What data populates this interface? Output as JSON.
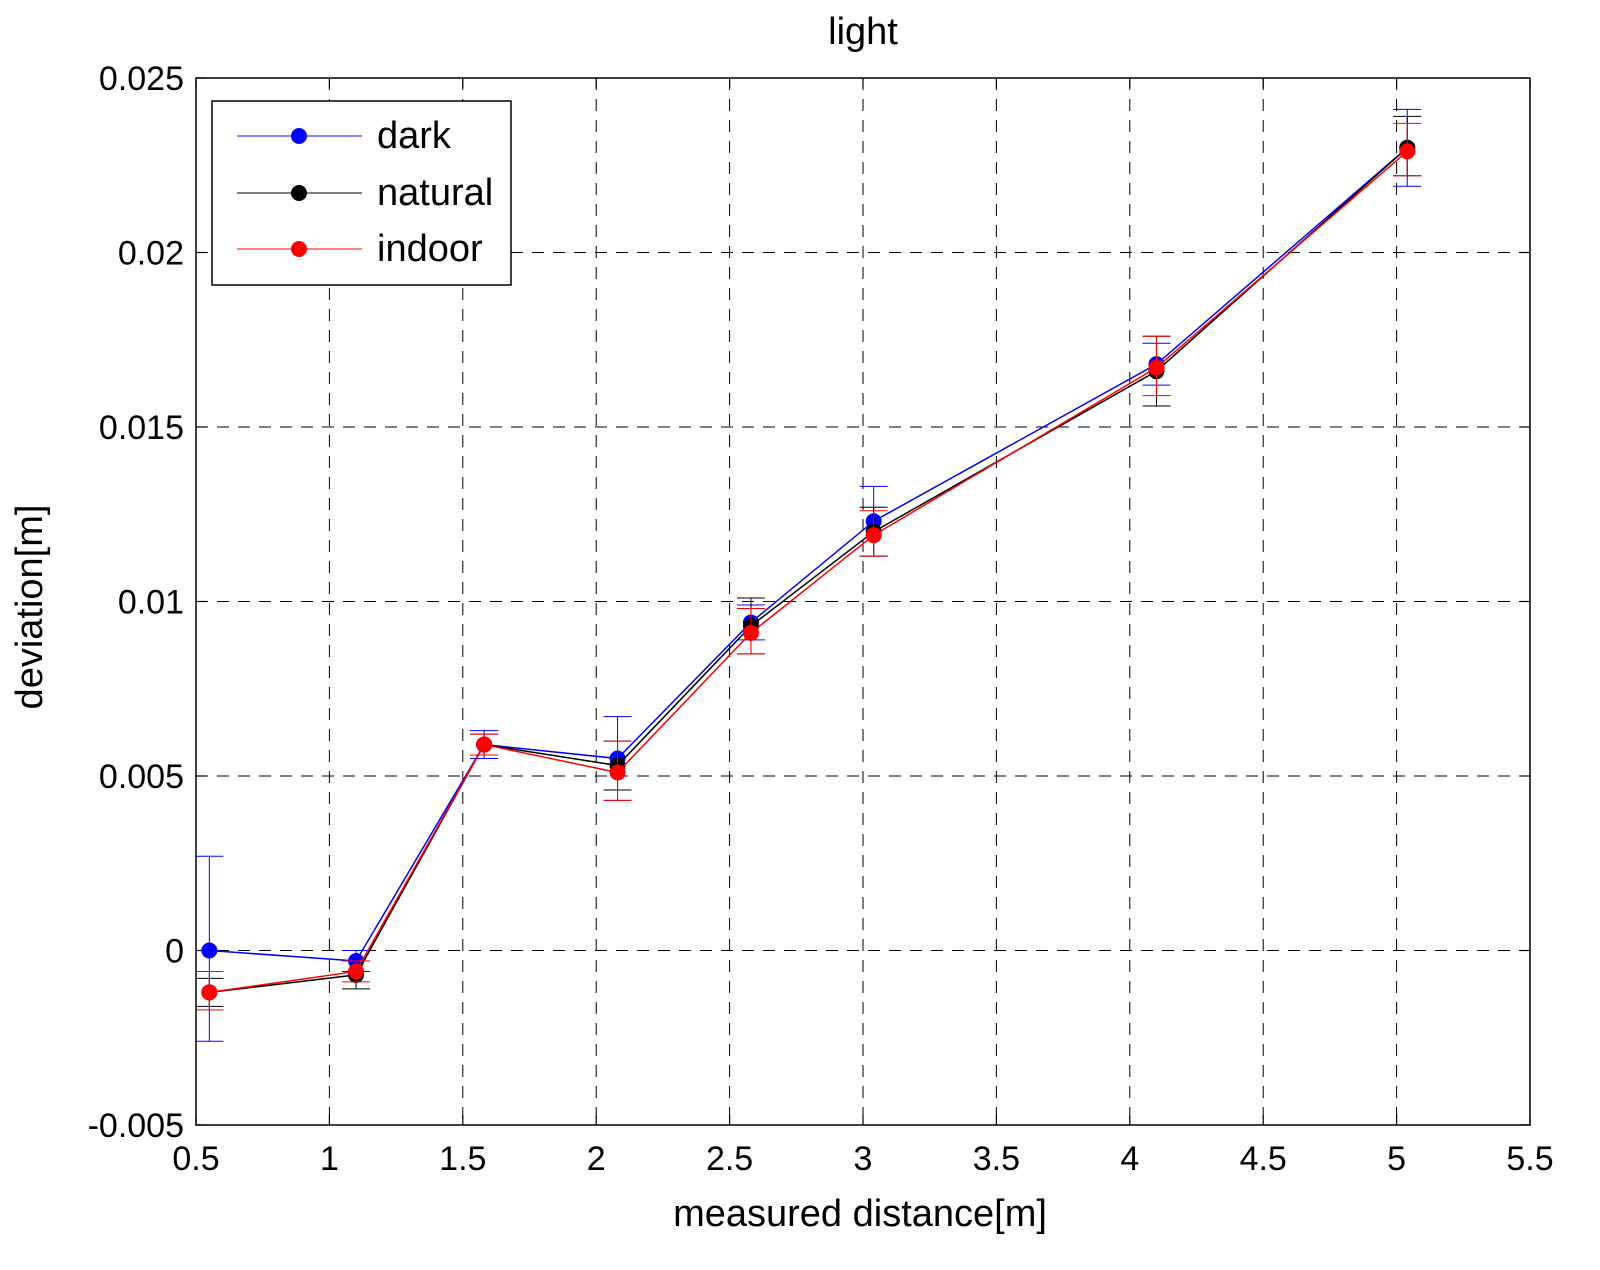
{
  "chart_data": {
    "type": "line",
    "title": "light",
    "xlabel": "measured distance[m]",
    "ylabel": "deviation[m]",
    "xlim": [
      0.5,
      5.5
    ],
    "ylim": [
      -0.005,
      0.025
    ],
    "xticks": [
      0.5,
      1,
      1.5,
      2,
      2.5,
      3,
      3.5,
      4,
      4.5,
      5,
      5.5
    ],
    "xtick_labels": [
      "0.5",
      "1",
      "1.5",
      "2",
      "2.5",
      "3",
      "3.5",
      "4",
      "4.5",
      "5",
      "5.5"
    ],
    "yticks": [
      -0.005,
      0,
      0.005,
      0.01,
      0.015,
      0.02,
      0.025
    ],
    "ytick_labels": [
      "-0.005",
      "0",
      "0.005",
      "0.01",
      "0.015",
      "0.02",
      "0.025"
    ],
    "grid": true,
    "legend_position": "top-left",
    "series": [
      {
        "name": "dark",
        "color": "#0000ff",
        "x": [
          0.55,
          1.1,
          1.58,
          2.08,
          2.58,
          3.04,
          4.1,
          5.04
        ],
        "y": [
          0.0,
          -0.0003,
          0.0059,
          0.0055,
          0.0094,
          0.0123,
          0.0168,
          0.023
        ],
        "err_low": [
          0.0026,
          0.0003,
          0.0004,
          0.0012,
          0.0005,
          0.001,
          0.0006,
          0.0011
        ],
        "err_high": [
          0.0027,
          0.0003,
          0.0004,
          0.0012,
          0.0005,
          0.001,
          0.0006,
          0.0011
        ]
      },
      {
        "name": "natural",
        "color": "#000000",
        "x": [
          0.55,
          1.1,
          1.58,
          2.08,
          2.58,
          3.04,
          4.1,
          5.04
        ],
        "y": [
          -0.0012,
          -0.0007,
          0.0059,
          0.0053,
          0.0093,
          0.012,
          0.0166,
          0.023
        ],
        "err_low": [
          0.0004,
          0.0004,
          0.0003,
          0.0007,
          0.0008,
          0.0007,
          0.001,
          0.0008
        ],
        "err_high": [
          0.0004,
          0.0004,
          0.0003,
          0.0007,
          0.0008,
          0.0007,
          0.001,
          0.0009
        ]
      },
      {
        "name": "indoor",
        "color": "#ff0000",
        "x": [
          0.55,
          1.1,
          1.58,
          2.08,
          2.58,
          3.04,
          4.1,
          5.04
        ],
        "y": [
          -0.0012,
          -0.0006,
          0.0059,
          0.0051,
          0.0091,
          0.0119,
          0.0167,
          0.0229
        ],
        "err_low": [
          0.0005,
          0.0003,
          0.0003,
          0.0008,
          0.0006,
          0.0006,
          0.0008,
          0.0007
        ],
        "err_high": [
          0.0006,
          0.0003,
          0.0003,
          0.0009,
          0.0007,
          0.0007,
          0.0009,
          0.0008
        ]
      }
    ]
  }
}
